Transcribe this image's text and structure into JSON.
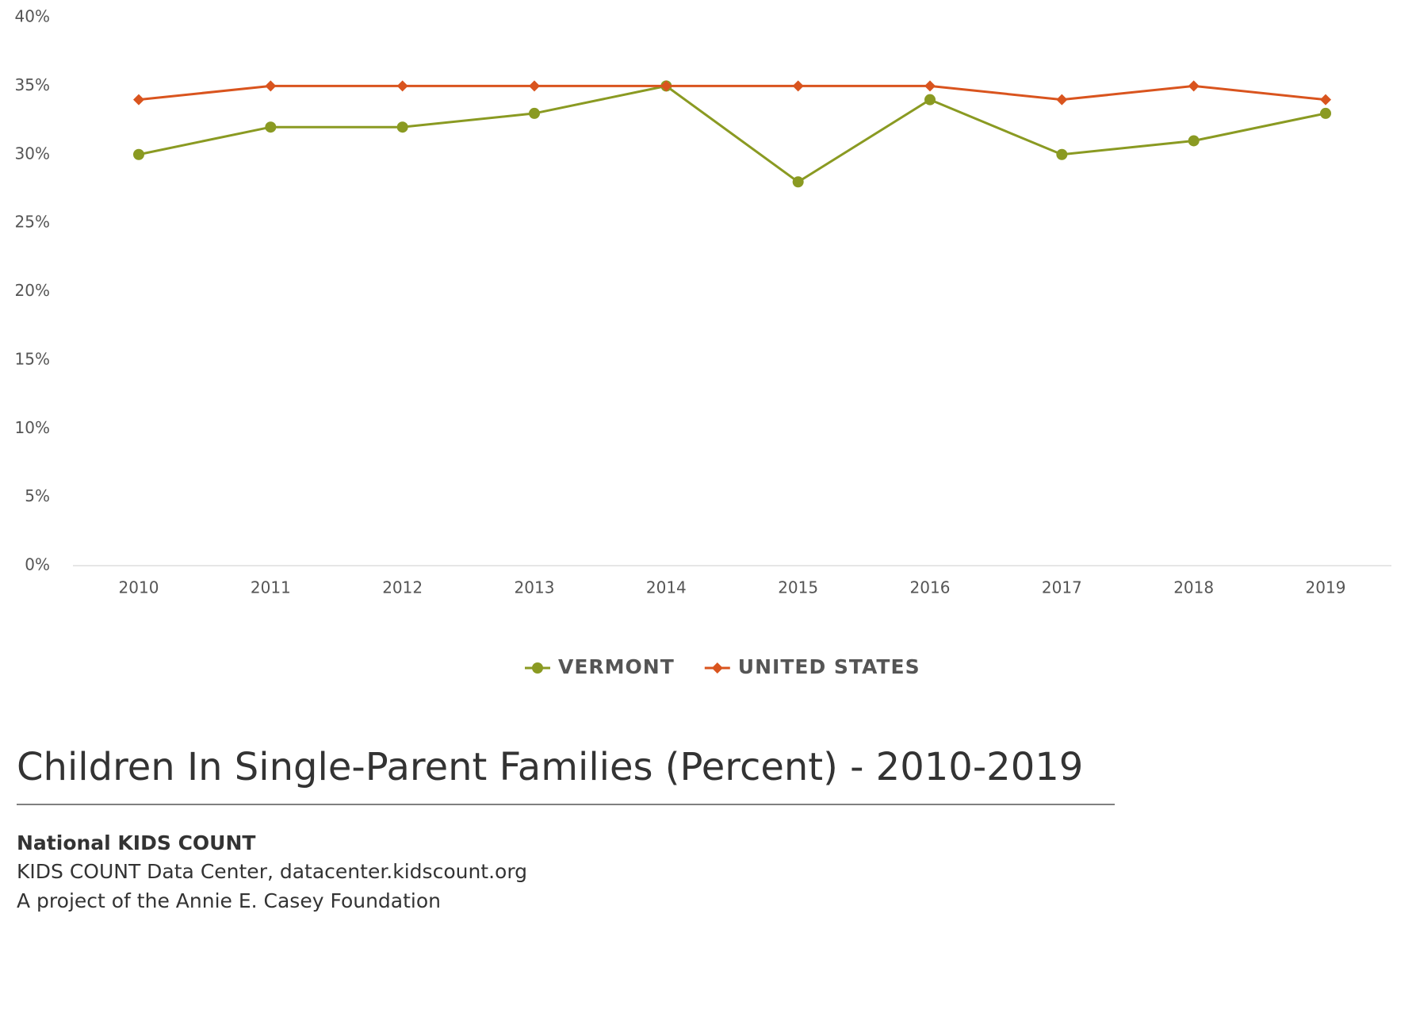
{
  "chart_data": {
    "type": "line",
    "title": "Children In Single-Parent Families (Percent) - 2010-2019",
    "categories": [
      "2010",
      "2011",
      "2012",
      "2013",
      "2014",
      "2015",
      "2016",
      "2017",
      "2018",
      "2019"
    ],
    "series": [
      {
        "name": "VERMONT",
        "color": "#8a9a22",
        "marker": "circle",
        "values": [
          30,
          32,
          32,
          33,
          35,
          28,
          34,
          30,
          31,
          33
        ]
      },
      {
        "name": "UNITED STATES",
        "color": "#d9541e",
        "marker": "diamond",
        "values": [
          34,
          35,
          35,
          35,
          35,
          35,
          35,
          34,
          35,
          34
        ]
      }
    ],
    "ylim": [
      0,
      40
    ],
    "yticks": [
      {
        "value": 0,
        "label": "0%"
      },
      {
        "value": 5,
        "label": "5%"
      },
      {
        "value": 10,
        "label": "10%"
      },
      {
        "value": 15,
        "label": "15%"
      },
      {
        "value": 20,
        "label": "20%"
      },
      {
        "value": 25,
        "label": "25%"
      },
      {
        "value": 30,
        "label": "30%"
      },
      {
        "value": 35,
        "label": "35%"
      },
      {
        "value": 40,
        "label": "40%"
      }
    ],
    "legend": "bottom"
  },
  "source": {
    "organization": "National KIDS COUNT",
    "lines": [
      "KIDS COUNT Data Center, datacenter.kidscount.org",
      "A project of the Annie E. Casey Foundation"
    ]
  }
}
